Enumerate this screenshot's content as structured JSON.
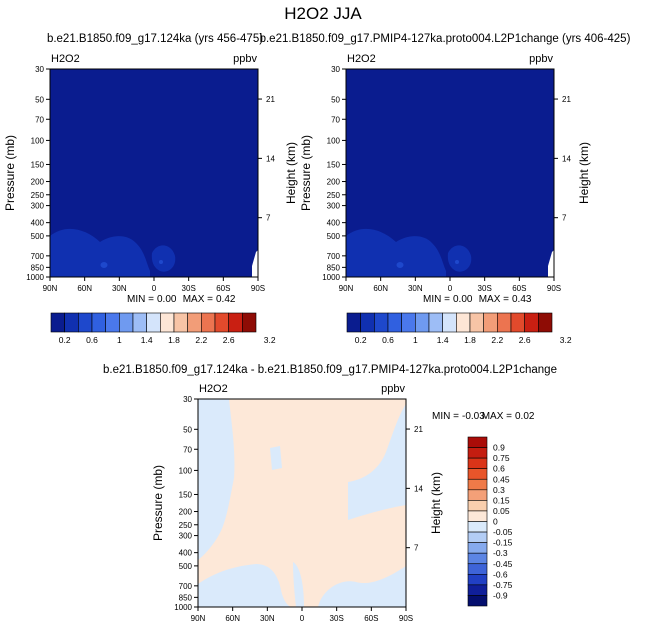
{
  "figure_title": "H2O2 JJA",
  "panel_titles": [
    "b.e21.B1850.f09_g17.124ka (yrs 456-475)",
    "b.e21.B1850.f09_g17.PMIP4-127ka.proto004.L2P1change (yrs 406-425)",
    "b.e21.B1850.f09_g17.124ka - b.e21.B1850.f09_g17.PMIP4-127ka.proto004.L2P1change"
  ],
  "chart_data": [
    {
      "type": "heatmap",
      "variable": "H2O2",
      "units": "ppbv",
      "xlabel": "",
      "ylabel": "Pressure (mb)",
      "ylabel_right": "Height (km)",
      "x_ticks": [
        "90N",
        "60N",
        "30N",
        "0",
        "30S",
        "60S",
        "90S"
      ],
      "y_ticks": [
        "30",
        "50",
        "70",
        "100",
        "150",
        "200",
        "250",
        "300",
        "400",
        "500",
        "700",
        "850",
        "1000"
      ],
      "height_ticks": [
        "21",
        "14",
        "7"
      ],
      "stats": {
        "min_label": "MIN =",
        "min": "0.00",
        "max_label": "MAX =",
        "max": "0.42"
      },
      "colorbar": {
        "labels": [
          "0.2",
          "0.6",
          "1",
          "1.4",
          "1.8",
          "2.2",
          "2.6",
          "3.2"
        ]
      },
      "dominant_value_range": [
        0,
        0.2
      ]
    },
    {
      "type": "heatmap",
      "variable": "H2O2",
      "units": "ppbv",
      "xlabel": "",
      "ylabel": "Pressure (mb)",
      "ylabel_right": "Height (km)",
      "x_ticks": [
        "90N",
        "60N",
        "30N",
        "0",
        "30S",
        "60S",
        "90S"
      ],
      "y_ticks": [
        "30",
        "50",
        "70",
        "100",
        "150",
        "200",
        "250",
        "300",
        "400",
        "500",
        "700",
        "850",
        "1000"
      ],
      "height_ticks": [
        "21",
        "14",
        "7"
      ],
      "stats": {
        "min_label": "MIN =",
        "min": "0.00",
        "max_label": "MAX =",
        "max": "0.43"
      },
      "colorbar": {
        "labels": [
          "0.2",
          "0.6",
          "1",
          "1.4",
          "1.8",
          "2.2",
          "2.6",
          "3.2"
        ]
      },
      "dominant_value_range": [
        0,
        0.2
      ]
    },
    {
      "type": "heatmap",
      "variable": "H2O2",
      "units": "ppbv",
      "xlabel": "",
      "ylabel": "Pressure (mb)",
      "ylabel_right": "Height (km)",
      "x_ticks": [
        "90N",
        "60N",
        "30N",
        "0",
        "30S",
        "60S",
        "90S"
      ],
      "y_ticks": [
        "30",
        "50",
        "70",
        "100",
        "150",
        "200",
        "250",
        "300",
        "400",
        "500",
        "700",
        "850",
        "1000"
      ],
      "height_ticks": [
        "21",
        "14",
        "7"
      ],
      "stats": {
        "min_label": "MIN =",
        "min": "-0.03",
        "max_label": "MAX =",
        "max": "0.02"
      },
      "colorbar": {
        "labels": [
          "0.9",
          "0.75",
          "0.6",
          "0.45",
          "0.3",
          "0.15",
          "0.05",
          "0",
          "-0.05",
          "-0.15",
          "-0.3",
          "-0.45",
          "-0.6",
          "-0.75",
          "-0.9"
        ]
      },
      "dominant_value_ranges": [
        [
          -0.05,
          0
        ],
        [
          0,
          0.05
        ]
      ]
    }
  ],
  "colors": {
    "abs_scale": [
      "#0a1c8f",
      "#1030b0",
      "#1e48cc",
      "#3060e0",
      "#4a78ec",
      "#6f9af0",
      "#9dbdf6",
      "#d4e4fb",
      "#fde6d6",
      "#f7c4a6",
      "#f29d78",
      "#ec7450",
      "#e24a2c",
      "#c91f12",
      "#8e0c05"
    ],
    "diff_scale": [
      "#aa0c08",
      "#c41d10",
      "#da3418",
      "#e8552a",
      "#ef7a48",
      "#f4a078",
      "#f9cfae",
      "#fde8d8",
      "#daeafb",
      "#b3cdf5",
      "#86aaee",
      "#5c85e4",
      "#3e64d8",
      "#2140c4",
      "#101f9a",
      "#040e6e"
    ],
    "abs_fill": "#0a1c8f",
    "abs_high_blob": "#1030b0",
    "abs_dot": "#1e48cc",
    "diff_pos": "#fde8d8",
    "diff_neg": "#daeafb"
  }
}
